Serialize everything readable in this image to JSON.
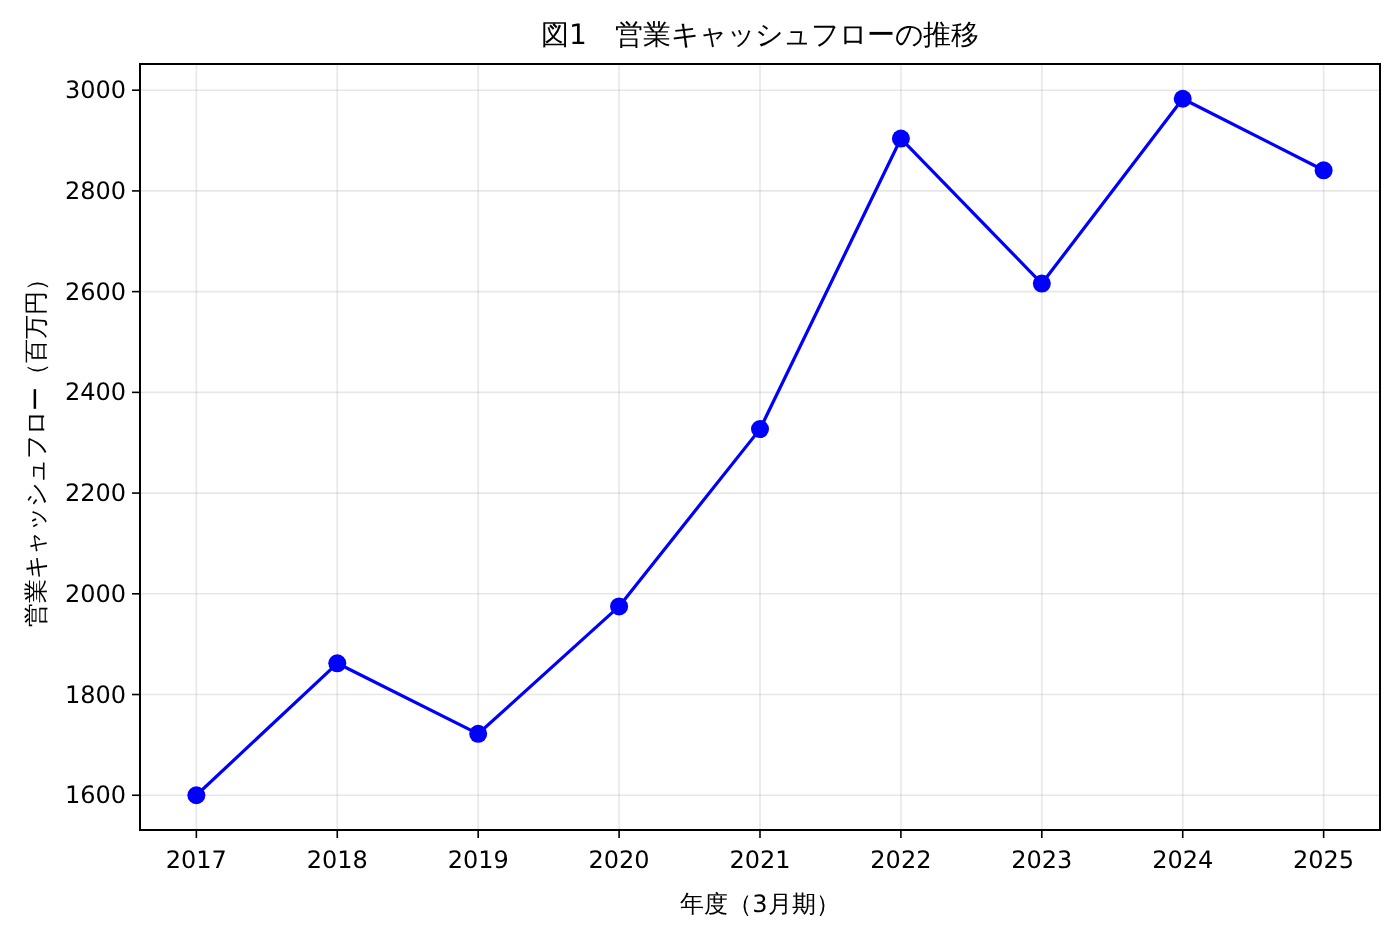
{
  "chart_data": {
    "type": "line",
    "title": "図1　営業キャッシュフローの推移",
    "xlabel": "年度（3月期）",
    "ylabel": "営業キャッシュフロー（百万円）",
    "x": [
      2017,
      2018,
      2019,
      2020,
      2021,
      2022,
      2023,
      2024,
      2025
    ],
    "series": [
      {
        "color": "#0000ff",
        "values": [
          1600,
          1862,
          1722,
          1975,
          2327,
          2904,
          2616,
          2983,
          2841
        ]
      }
    ],
    "xlim": [
      2016.6,
      2025.4
    ],
    "xticks": [
      2017,
      2018,
      2019,
      2020,
      2021,
      2022,
      2023,
      2024,
      2025
    ],
    "ylim": [
      1531,
      3052
    ],
    "yticks": [
      1600,
      1800,
      2000,
      2200,
      2400,
      2600,
      2800,
      3000
    ],
    "grid": true,
    "marker": "circle",
    "line_style": "solid"
  }
}
